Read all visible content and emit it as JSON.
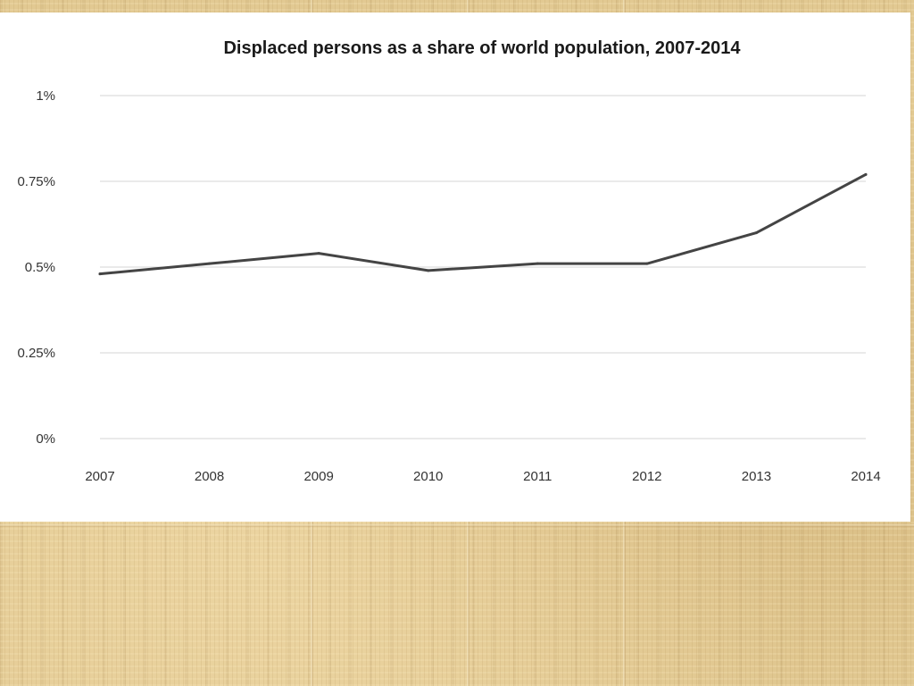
{
  "chart_data": {
    "type": "line",
    "title": "Displaced persons as a share of world population, 2007-2014",
    "xlabel": "",
    "ylabel": "",
    "categories": [
      "2007",
      "2008",
      "2009",
      "2010",
      "2011",
      "2012",
      "2013",
      "2014"
    ],
    "series": [
      {
        "values": [
          0.48,
          0.51,
          0.54,
          0.49,
          0.51,
          0.51,
          0.6,
          0.77
        ]
      }
    ],
    "ylim": [
      0,
      1
    ],
    "yticks": [
      {
        "value": 1,
        "label": "1%"
      },
      {
        "value": 0.75,
        "label": "0.75%"
      },
      {
        "value": 0.5,
        "label": "0.5%"
      },
      {
        "value": 0.25,
        "label": "0.25%"
      },
      {
        "value": 0,
        "label": "0%"
      }
    ],
    "grid": true,
    "legend": "none",
    "colors": {
      "line": "#444444",
      "grid": "#d4d4d4",
      "panel": "#ffffff",
      "background": "#e2c992"
    }
  }
}
